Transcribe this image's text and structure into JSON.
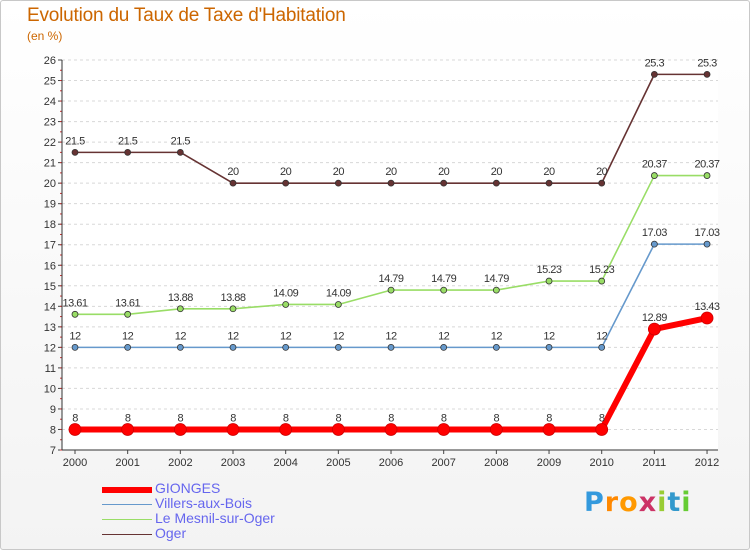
{
  "title": "Evolution du Taux de Taxe d'Habitation",
  "subtitle": "(en %)",
  "chart_data": {
    "type": "line",
    "title": "Evolution du Taux de Taxe d'Habitation",
    "ylabel": "(en %)",
    "xlabel": "",
    "x": [
      "2000",
      "2001",
      "2002",
      "2003",
      "2004",
      "2005",
      "2006",
      "2007",
      "2008",
      "2009",
      "2010",
      "2011",
      "2012"
    ],
    "ylim": [
      7,
      26
    ],
    "yticks": [
      7,
      8,
      9,
      10,
      11,
      12,
      13,
      14,
      15,
      16,
      17,
      18,
      19,
      20,
      21,
      22,
      23,
      24,
      25,
      26
    ],
    "grid": "horizontal dashed",
    "legend_position": "bottom-left",
    "series": [
      {
        "name": "GIONGES",
        "color": "#ff0000",
        "width": 6,
        "values": [
          8,
          8,
          8,
          8,
          8,
          8,
          8,
          8,
          8,
          8,
          8,
          12.89,
          13.43
        ],
        "labels": [
          "8",
          "8",
          "8",
          "8",
          "8",
          "8",
          "8",
          "8",
          "8",
          "8",
          "8",
          "12.89",
          "13.43"
        ]
      },
      {
        "name": "Villers-aux-Bois",
        "color": "#6699cc",
        "width": 1,
        "values": [
          12,
          12,
          12,
          12,
          12,
          12,
          12,
          12,
          12,
          12,
          12,
          17.03,
          17.03
        ],
        "labels": [
          "12",
          "12",
          "12",
          "12",
          "12",
          "12",
          "12",
          "12",
          "12",
          "12",
          "12",
          "17.03",
          "17.03"
        ]
      },
      {
        "name": "Le Mesnil-sur-Oger",
        "color": "#99dd66",
        "width": 1,
        "values": [
          13.61,
          13.61,
          13.88,
          13.88,
          14.09,
          14.09,
          14.79,
          14.79,
          14.79,
          15.23,
          15.23,
          20.37,
          20.37
        ],
        "labels": [
          "13.61",
          "13.61",
          "13.88",
          "13.88",
          "14.09",
          "14.09",
          "14.79",
          "14.79",
          "14.79",
          "15.23",
          "15.23",
          "20.37",
          "20.37"
        ]
      },
      {
        "name": "Oger",
        "color": "#663333",
        "width": 1,
        "values": [
          21.5,
          21.5,
          21.5,
          20,
          20,
          20,
          20,
          20,
          20,
          20,
          20,
          25.3,
          25.3
        ],
        "labels": [
          "21.5",
          "21.5",
          "21.5",
          "20",
          "20",
          "20",
          "20",
          "20",
          "20",
          "20",
          "20",
          "25.3",
          "25.3"
        ]
      }
    ]
  },
  "legend": [
    "GIONGES",
    "Villers-aux-Bois",
    "Le Mesnil-sur-Oger",
    "Oger"
  ],
  "logo": {
    "text": "Proxiti",
    "letters": [
      "P",
      "r",
      "o",
      "x",
      "i",
      "t",
      "i"
    ],
    "colors": [
      "#3399dd",
      "#ff8800",
      "#ff9900",
      "#cc3366",
      "#99cc33",
      "#3399cc",
      "#66cc33"
    ]
  }
}
